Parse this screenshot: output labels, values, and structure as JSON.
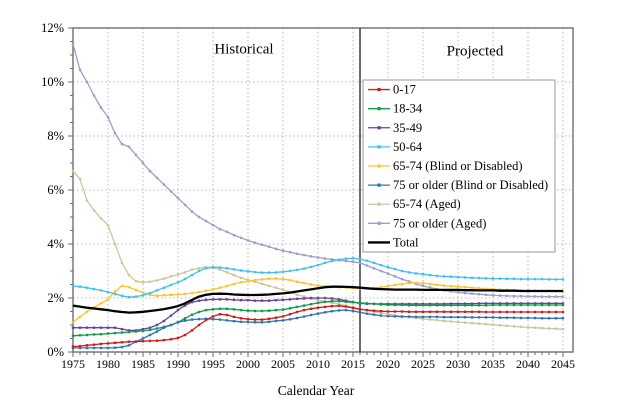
{
  "chart_data": {
    "type": "line",
    "title": "",
    "xlabel": "Calendar Year",
    "ylabel": "",
    "xlim": [
      1975,
      2045
    ],
    "ylim": [
      0,
      12
    ],
    "grid": true,
    "legend_position": "upper right",
    "divider_year": 2016,
    "annotations": {
      "historical": "Historical",
      "projected": "Projected"
    },
    "x_tick_labels": [
      "1975",
      "1980",
      "1985",
      "1990",
      "1995",
      "2000",
      "2005",
      "2010",
      "2015",
      "2020",
      "2025",
      "2030",
      "2035",
      "2040",
      "2045"
    ],
    "y_tick_labels": [
      "0%",
      "2%",
      "4%",
      "6%",
      "8%",
      "10%",
      "12%"
    ],
    "x_start": 1975,
    "x_step": 1,
    "draw_order": [
      7,
      6,
      4,
      3,
      2,
      1,
      5,
      0,
      8
    ],
    "series": [
      {
        "key": "age-0-17",
        "name": "0-17",
        "color": "#d01b1b",
        "marker": true,
        "width": 1.3,
        "values": [
          0.2,
          0.22,
          0.25,
          0.27,
          0.3,
          0.32,
          0.34,
          0.36,
          0.38,
          0.39,
          0.4,
          0.41,
          0.42,
          0.44,
          0.47,
          0.52,
          0.63,
          0.8,
          1.0,
          1.18,
          1.32,
          1.4,
          1.37,
          1.3,
          1.25,
          1.22,
          1.2,
          1.2,
          1.23,
          1.27,
          1.32,
          1.4,
          1.48,
          1.55,
          1.6,
          1.64,
          1.67,
          1.7,
          1.71,
          1.68,
          1.63,
          1.58,
          1.55,
          1.53,
          1.51,
          1.5,
          1.5,
          1.5,
          1.49,
          1.49,
          1.49,
          1.49,
          1.49,
          1.49,
          1.49,
          1.49,
          1.49,
          1.49,
          1.49,
          1.48,
          1.48,
          1.48,
          1.48,
          1.48,
          1.48,
          1.48,
          1.48,
          1.48,
          1.48,
          1.48,
          1.48
        ]
      },
      {
        "key": "age-18-34",
        "name": "18-34",
        "color": "#0f9c49",
        "marker": true,
        "width": 1.3,
        "values": [
          0.6,
          0.62,
          0.63,
          0.65,
          0.66,
          0.68,
          0.7,
          0.72,
          0.74,
          0.76,
          0.78,
          0.82,
          0.87,
          0.93,
          1.0,
          1.1,
          1.25,
          1.38,
          1.48,
          1.55,
          1.58,
          1.6,
          1.6,
          1.58,
          1.55,
          1.53,
          1.52,
          1.52,
          1.53,
          1.55,
          1.57,
          1.62,
          1.67,
          1.72,
          1.77,
          1.82,
          1.86,
          1.88,
          1.88,
          1.86,
          1.84,
          1.82,
          1.8,
          1.78,
          1.76,
          1.75,
          1.74,
          1.74,
          1.73,
          1.73,
          1.73,
          1.73,
          1.73,
          1.73,
          1.73,
          1.73,
          1.73,
          1.73,
          1.73,
          1.73,
          1.74,
          1.74,
          1.74,
          1.74,
          1.74,
          1.74,
          1.74,
          1.74,
          1.74,
          1.74,
          1.74
        ]
      },
      {
        "key": "age-35-49",
        "name": "35-49",
        "color": "#6b3fa0",
        "marker": true,
        "width": 1.3,
        "values": [
          0.9,
          0.9,
          0.9,
          0.9,
          0.9,
          0.9,
          0.9,
          0.85,
          0.8,
          0.8,
          0.85,
          0.9,
          1.0,
          1.15,
          1.35,
          1.55,
          1.72,
          1.85,
          1.9,
          1.93,
          1.95,
          1.95,
          1.95,
          1.93,
          1.92,
          1.92,
          1.9,
          1.9,
          1.9,
          1.92,
          1.93,
          1.95,
          1.97,
          1.98,
          2.0,
          2.0,
          2.0,
          1.98,
          1.95,
          1.9,
          1.85,
          1.8,
          1.78,
          1.78,
          1.78,
          1.78,
          1.78,
          1.78,
          1.78,
          1.78,
          1.78,
          1.78,
          1.78,
          1.78,
          1.79,
          1.79,
          1.79,
          1.79,
          1.8,
          1.8,
          1.8,
          1.8,
          1.8,
          1.8,
          1.8,
          1.8,
          1.8,
          1.8,
          1.8,
          1.8,
          1.8
        ]
      },
      {
        "key": "age-50-64",
        "name": "50-64",
        "color": "#41c0f0",
        "marker": true,
        "width": 1.3,
        "values": [
          2.45,
          2.42,
          2.38,
          2.33,
          2.28,
          2.22,
          2.15,
          2.08,
          2.03,
          2.05,
          2.1,
          2.18,
          2.28,
          2.38,
          2.48,
          2.58,
          2.7,
          2.85,
          3.0,
          3.1,
          3.14,
          3.13,
          3.1,
          3.06,
          3.02,
          2.99,
          2.96,
          2.94,
          2.94,
          2.95,
          2.97,
          3.0,
          3.04,
          3.09,
          3.15,
          3.22,
          3.3,
          3.37,
          3.42,
          3.46,
          3.47,
          3.44,
          3.38,
          3.3,
          3.22,
          3.14,
          3.07,
          3.0,
          2.95,
          2.91,
          2.88,
          2.85,
          2.82,
          2.8,
          2.79,
          2.77,
          2.76,
          2.75,
          2.74,
          2.73,
          2.72,
          2.72,
          2.71,
          2.71,
          2.7,
          2.7,
          2.7,
          2.7,
          2.69,
          2.69,
          2.69
        ]
      },
      {
        "key": "bd-65-74",
        "name": "65-74 (Blind or Disabled)",
        "color": "#fdc32b",
        "marker": true,
        "width": 1.3,
        "values": [
          1.1,
          1.3,
          1.5,
          1.65,
          1.8,
          1.95,
          2.25,
          2.45,
          2.4,
          2.3,
          2.2,
          2.12,
          2.08,
          2.1,
          2.12,
          2.13,
          2.15,
          2.18,
          2.22,
          2.27,
          2.32,
          2.38,
          2.45,
          2.52,
          2.58,
          2.62,
          2.66,
          2.69,
          2.71,
          2.72,
          2.7,
          2.66,
          2.6,
          2.55,
          2.5,
          2.46,
          2.43,
          2.41,
          2.4,
          2.39,
          2.37,
          2.36,
          2.36,
          2.37,
          2.4,
          2.44,
          2.48,
          2.52,
          2.55,
          2.56,
          2.55,
          2.52,
          2.49,
          2.46,
          2.44,
          2.42,
          2.4,
          2.38,
          2.36,
          2.34,
          2.33,
          2.31,
          2.3,
          2.29,
          2.28,
          2.27,
          2.27,
          2.26,
          2.26,
          2.25,
          2.25
        ]
      },
      {
        "key": "bd-75-older",
        "name": "75 or older (Blind or Disabled)",
        "color": "#2e74b5",
        "marker": true,
        "width": 1.3,
        "values": [
          0.15,
          0.15,
          0.15,
          0.15,
          0.15,
          0.15,
          0.16,
          0.18,
          0.25,
          0.38,
          0.5,
          0.63,
          0.76,
          0.9,
          1.0,
          1.1,
          1.16,
          1.2,
          1.22,
          1.23,
          1.22,
          1.2,
          1.17,
          1.14,
          1.12,
          1.11,
          1.1,
          1.1,
          1.12,
          1.15,
          1.17,
          1.21,
          1.26,
          1.31,
          1.37,
          1.42,
          1.47,
          1.51,
          1.54,
          1.55,
          1.52,
          1.47,
          1.42,
          1.38,
          1.35,
          1.33,
          1.32,
          1.31,
          1.31,
          1.3,
          1.3,
          1.3,
          1.3,
          1.29,
          1.29,
          1.29,
          1.29,
          1.28,
          1.28,
          1.28,
          1.28,
          1.27,
          1.27,
          1.27,
          1.26,
          1.26,
          1.26,
          1.25,
          1.25,
          1.25,
          1.25
        ]
      },
      {
        "key": "aged-65-74",
        "name": "65-74 (Aged)",
        "color": "#ccc69b",
        "marker": true,
        "width": 1.3,
        "values": [
          6.7,
          6.4,
          5.6,
          5.25,
          4.95,
          4.7,
          4.0,
          3.3,
          2.85,
          2.62,
          2.58,
          2.6,
          2.65,
          2.72,
          2.8,
          2.87,
          2.95,
          3.05,
          3.1,
          3.14,
          3.12,
          3.05,
          2.95,
          2.85,
          2.75,
          2.67,
          2.6,
          2.52,
          2.45,
          2.38,
          2.3,
          2.22,
          2.12,
          2.05,
          1.98,
          1.92,
          1.87,
          1.82,
          1.77,
          1.72,
          1.66,
          1.6,
          1.54,
          1.49,
          1.44,
          1.4,
          1.36,
          1.32,
          1.29,
          1.26,
          1.23,
          1.2,
          1.18,
          1.15,
          1.13,
          1.11,
          1.09,
          1.07,
          1.05,
          1.03,
          1.01,
          0.99,
          0.97,
          0.95,
          0.93,
          0.91,
          0.9,
          0.88,
          0.87,
          0.86,
          0.85
        ]
      },
      {
        "key": "aged-75-older",
        "name": "75 or older (Aged)",
        "color": "#9d9dc9",
        "marker": true,
        "width": 1.3,
        "values": [
          11.4,
          10.45,
          10.0,
          9.5,
          9.05,
          8.7,
          8.1,
          7.7,
          7.6,
          7.3,
          7.0,
          6.7,
          6.45,
          6.2,
          5.95,
          5.7,
          5.45,
          5.2,
          5.0,
          4.85,
          4.7,
          4.55,
          4.45,
          4.33,
          4.23,
          4.13,
          4.05,
          3.97,
          3.9,
          3.82,
          3.75,
          3.7,
          3.64,
          3.59,
          3.54,
          3.5,
          3.46,
          3.43,
          3.4,
          3.37,
          3.34,
          3.3,
          3.2,
          3.1,
          3.0,
          2.9,
          2.8,
          2.7,
          2.61,
          2.52,
          2.45,
          2.39,
          2.33,
          2.28,
          2.24,
          2.21,
          2.18,
          2.16,
          2.14,
          2.12,
          2.1,
          2.09,
          2.08,
          2.07,
          2.07,
          2.06,
          2.06,
          2.05,
          2.05,
          2.05,
          2.05
        ]
      },
      {
        "key": "total",
        "name": "Total",
        "color": "#000000",
        "marker": false,
        "width": 2.3,
        "values": [
          1.72,
          1.68,
          1.64,
          1.61,
          1.58,
          1.55,
          1.51,
          1.48,
          1.46,
          1.47,
          1.49,
          1.52,
          1.55,
          1.59,
          1.64,
          1.7,
          1.8,
          1.93,
          2.05,
          2.12,
          2.15,
          2.16,
          2.15,
          2.13,
          2.12,
          2.11,
          2.11,
          2.12,
          2.13,
          2.15,
          2.17,
          2.2,
          2.24,
          2.28,
          2.32,
          2.36,
          2.4,
          2.42,
          2.42,
          2.41,
          2.4,
          2.38,
          2.36,
          2.34,
          2.33,
          2.32,
          2.31,
          2.31,
          2.31,
          2.31,
          2.3,
          2.3,
          2.3,
          2.3,
          2.3,
          2.3,
          2.29,
          2.29,
          2.28,
          2.28,
          2.28,
          2.27,
          2.27,
          2.27,
          2.26,
          2.26,
          2.26,
          2.26,
          2.26,
          2.26,
          2.26
        ]
      }
    ],
    "colors": {
      "grid": "#b9b9b9",
      "axis": "#6e6e6e",
      "divider": "#3c3c3c",
      "legend_border": "#999999",
      "background": "#ffffff"
    }
  }
}
